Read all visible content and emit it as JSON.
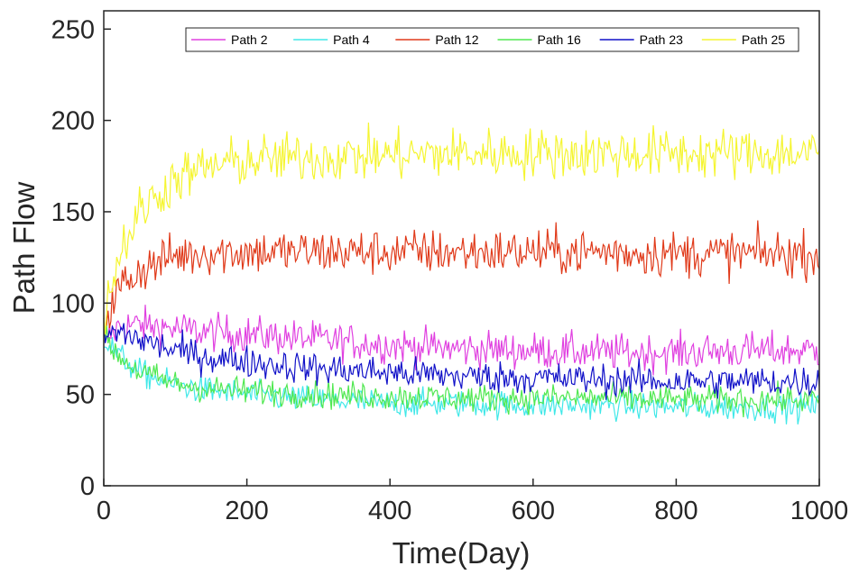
{
  "chart_data": {
    "type": "line",
    "title": "",
    "xlabel": "Time(Day)",
    "ylabel": "Path Flow",
    "xlim": [
      0,
      1000
    ],
    "ylim": [
      0,
      260
    ],
    "xticks": [
      0,
      200,
      400,
      600,
      800,
      1000
    ],
    "yticks": [
      0,
      50,
      100,
      150,
      200,
      250
    ],
    "grid": false,
    "legend_position": "top-right",
    "legend_orientation": "horizontal",
    "series": [
      {
        "name": "Path 2",
        "color": "#e040e0",
        "x": [
          0,
          25,
          50,
          100,
          150,
          200,
          300,
          400,
          500,
          600,
          700,
          800,
          900,
          1000
        ],
        "y": [
          80,
          88,
          88,
          86,
          84,
          83,
          80,
          77,
          75,
          74,
          73,
          73,
          74,
          74
        ],
        "noise": 8
      },
      {
        "name": "Path 4",
        "color": "#40e8e8",
        "x": [
          0,
          25,
          50,
          100,
          150,
          200,
          300,
          400,
          500,
          600,
          700,
          800,
          900,
          1000
        ],
        "y": [
          80,
          70,
          62,
          55,
          52,
          50,
          47,
          45,
          45,
          44,
          44,
          43,
          43,
          43
        ],
        "noise": 6
      },
      {
        "name": "Path 12",
        "color": "#e03a1a",
        "x": [
          0,
          25,
          50,
          100,
          150,
          200,
          300,
          400,
          500,
          600,
          700,
          800,
          900,
          1000
        ],
        "y": [
          90,
          110,
          118,
          126,
          128,
          128,
          128,
          128,
          128,
          128,
          128,
          127,
          127,
          127
        ],
        "noise": 10
      },
      {
        "name": "Path 16",
        "color": "#50e850",
        "x": [
          0,
          25,
          50,
          100,
          150,
          200,
          300,
          400,
          500,
          600,
          700,
          800,
          900,
          1000
        ],
        "y": [
          80,
          70,
          62,
          56,
          53,
          52,
          50,
          49,
          48,
          48,
          48,
          47,
          47,
          47
        ],
        "noise": 6
      },
      {
        "name": "Path 23",
        "color": "#1010c8",
        "x": [
          0,
          25,
          50,
          100,
          150,
          200,
          300,
          400,
          500,
          600,
          700,
          800,
          900,
          1000
        ],
        "y": [
          82,
          84,
          80,
          74,
          70,
          68,
          64,
          62,
          60,
          59,
          58,
          57,
          57,
          57
        ],
        "noise": 7
      },
      {
        "name": "Path 25",
        "color": "#f5f530",
        "x": [
          0,
          25,
          50,
          100,
          150,
          200,
          300,
          400,
          500,
          600,
          700,
          800,
          900,
          1000
        ],
        "y": [
          95,
          130,
          150,
          168,
          175,
          178,
          180,
          181,
          182,
          182,
          182,
          182,
          182,
          182
        ],
        "noise": 11
      }
    ]
  }
}
